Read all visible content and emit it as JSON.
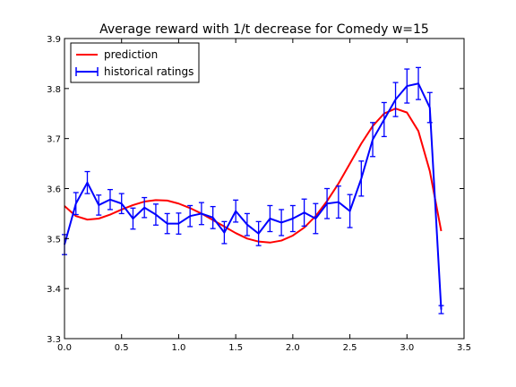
{
  "chart_data": {
    "type": "line",
    "title": "Average reward with 1/t decrease for Comedy w=15",
    "xlabel": "",
    "ylabel": "",
    "xlim": [
      0.0,
      3.5
    ],
    "ylim": [
      3.3,
      3.9
    ],
    "x_ticks": [
      "0.0",
      "0.5",
      "1.0",
      "1.5",
      "2.0",
      "2.5",
      "3.0",
      "3.5"
    ],
    "y_ticks": [
      "3.3",
      "3.4",
      "3.5",
      "3.6",
      "3.7",
      "3.8",
      "3.9"
    ],
    "grid": false,
    "legend_position": "upper-left",
    "series": [
      {
        "name": "prediction",
        "color": "#ff0000",
        "style": "line",
        "x": [
          0.0,
          0.1,
          0.2,
          0.3,
          0.4,
          0.5,
          0.6,
          0.7,
          0.8,
          0.9,
          1.0,
          1.1,
          1.2,
          1.3,
          1.4,
          1.5,
          1.6,
          1.7,
          1.8,
          1.9,
          2.0,
          2.1,
          2.2,
          2.3,
          2.4,
          2.5,
          2.6,
          2.7,
          2.8,
          2.9,
          3.0,
          3.1,
          3.2,
          3.3
        ],
        "y": [
          3.565,
          3.545,
          3.538,
          3.54,
          3.548,
          3.558,
          3.567,
          3.574,
          3.577,
          3.576,
          3.57,
          3.561,
          3.55,
          3.537,
          3.524,
          3.511,
          3.5,
          3.494,
          3.492,
          3.496,
          3.506,
          3.522,
          3.545,
          3.575,
          3.61,
          3.65,
          3.69,
          3.725,
          3.75,
          3.76,
          3.752,
          3.715,
          3.635,
          3.515
        ]
      },
      {
        "name": "historical ratings",
        "color": "#0000ff",
        "style": "errorbar",
        "x": [
          0.0,
          0.1,
          0.2,
          0.3,
          0.4,
          0.5,
          0.6,
          0.7,
          0.8,
          0.9,
          1.0,
          1.1,
          1.2,
          1.3,
          1.4,
          1.5,
          1.6,
          1.7,
          1.8,
          1.9,
          2.0,
          2.1,
          2.2,
          2.3,
          2.4,
          2.5,
          2.6,
          2.7,
          2.8,
          2.9,
          3.0,
          3.1,
          3.2,
          3.3
        ],
        "y": [
          3.488,
          3.57,
          3.612,
          3.567,
          3.578,
          3.57,
          3.54,
          3.562,
          3.548,
          3.53,
          3.53,
          3.545,
          3.55,
          3.542,
          3.512,
          3.555,
          3.528,
          3.51,
          3.54,
          3.532,
          3.54,
          3.552,
          3.54,
          3.57,
          3.573,
          3.555,
          3.62,
          3.698,
          3.738,
          3.778,
          3.805,
          3.81,
          3.762,
          3.358
        ],
        "err": [
          0.02,
          0.022,
          0.022,
          0.02,
          0.02,
          0.02,
          0.021,
          0.02,
          0.021,
          0.02,
          0.021,
          0.021,
          0.022,
          0.022,
          0.022,
          0.022,
          0.022,
          0.024,
          0.026,
          0.026,
          0.026,
          0.027,
          0.03,
          0.03,
          0.032,
          0.033,
          0.035,
          0.034,
          0.034,
          0.034,
          0.034,
          0.032,
          0.03,
          0.008
        ]
      }
    ]
  }
}
